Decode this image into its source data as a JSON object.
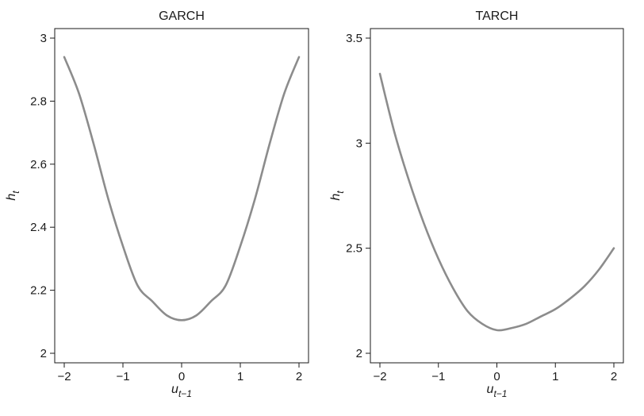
{
  "chart_data": [
    {
      "type": "line",
      "title": "GARCH",
      "xlabel": "u",
      "xlabel_sub": "t−1",
      "ylabel": "h",
      "ylabel_sub": "t",
      "xlim": [
        -2,
        2
      ],
      "ylim": [
        2,
        3
      ],
      "xticks": [
        -2,
        -1,
        0,
        1,
        2
      ],
      "xtick_labels": [
        "−2",
        "−1",
        "0",
        "1",
        "2"
      ],
      "yticks": [
        2,
        2.2,
        2.4,
        2.6,
        2.8,
        3
      ],
      "ytick_labels": [
        "2",
        "2.2",
        "2.4",
        "2.6",
        "2.8",
        "3"
      ],
      "grid": false,
      "line_color": "#8c8c8c",
      "series": [
        {
          "x": [
            -2,
            -1.75,
            -1.5,
            -1.25,
            -1,
            -0.75,
            -0.5,
            -0.25,
            0,
            0.25,
            0.5,
            0.75,
            1,
            1.25,
            1.5,
            1.75,
            2
          ],
          "y": [
            2.94,
            2.825,
            2.665,
            2.49,
            2.34,
            2.215,
            2.165,
            2.12,
            2.105,
            2.12,
            2.165,
            2.215,
            2.34,
            2.49,
            2.665,
            2.825,
            2.94
          ]
        }
      ]
    },
    {
      "type": "line",
      "title": "TARCH",
      "xlabel": "u",
      "xlabel_sub": "t−1",
      "ylabel": "h",
      "ylabel_sub": "t",
      "xlim": [
        -2,
        2
      ],
      "ylim": [
        2,
        3.5
      ],
      "xticks": [
        -2,
        -1,
        0,
        1,
        2
      ],
      "xtick_labels": [
        "−2",
        "−1",
        "0",
        "1",
        "2"
      ],
      "yticks": [
        2,
        2.5,
        3,
        3.5
      ],
      "ytick_labels": [
        "2",
        "2.5",
        "3",
        "3.5"
      ],
      "grid": false,
      "line_color": "#8c8c8c",
      "series": [
        {
          "x": [
            -2,
            -1.75,
            -1.5,
            -1.25,
            -1,
            -0.75,
            -0.5,
            -0.25,
            0,
            0.25,
            0.5,
            0.75,
            1,
            1.25,
            1.5,
            1.75,
            2
          ],
          "y": [
            3.33,
            3.05,
            2.82,
            2.62,
            2.45,
            2.31,
            2.2,
            2.14,
            2.11,
            2.12,
            2.14,
            2.175,
            2.21,
            2.26,
            2.32,
            2.4,
            2.5
          ]
        }
      ]
    }
  ]
}
